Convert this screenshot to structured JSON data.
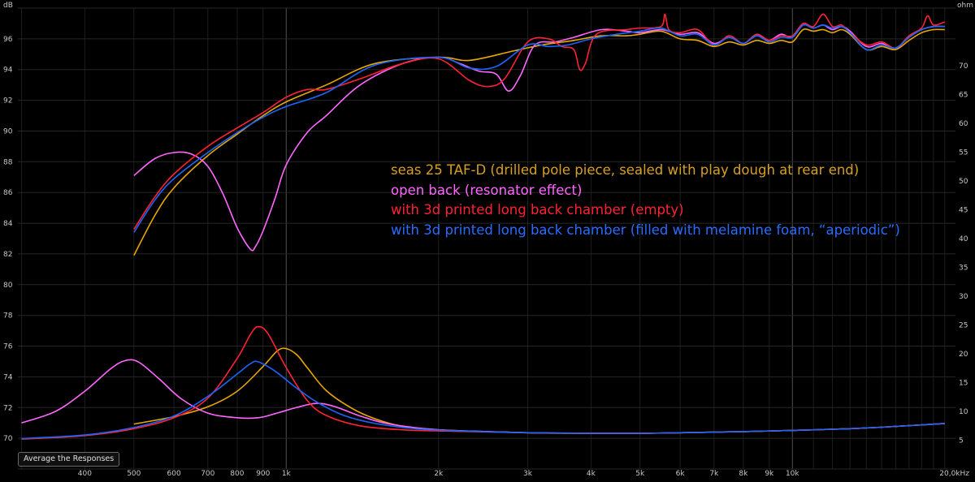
{
  "toolbar": {
    "average_button_label": "Average the Responses"
  },
  "chart_data": {
    "type": "line",
    "title": "",
    "xscale": "log",
    "xlim": [
      295,
      21000
    ],
    "ylabel_left": "dB",
    "ylabel_right": "ohm",
    "ylim_left": [
      68,
      98
    ],
    "ylim_right": [
      0,
      80
    ],
    "y_ticks_left": [
      70,
      72,
      74,
      76,
      78,
      80,
      82,
      84,
      86,
      88,
      90,
      92,
      94,
      96
    ],
    "y_ticks_right": [
      5,
      10,
      15,
      20,
      25,
      30,
      35,
      40,
      45,
      50,
      55,
      60,
      65,
      70
    ],
    "x_ticks": [
      {
        "value": 400,
        "label": "400"
      },
      {
        "value": 500,
        "label": "500"
      },
      {
        "value": 600,
        "label": "600"
      },
      {
        "value": 700,
        "label": "700"
      },
      {
        "value": 800,
        "label": "800"
      },
      {
        "value": 900,
        "label": "900"
      },
      {
        "value": 1000,
        "label": "1k"
      },
      {
        "value": 2000,
        "label": "2k"
      },
      {
        "value": 3000,
        "label": "3k"
      },
      {
        "value": 4000,
        "label": "4k"
      },
      {
        "value": 5000,
        "label": "5k"
      },
      {
        "value": 6000,
        "label": "6k"
      },
      {
        "value": 7000,
        "label": "7k"
      },
      {
        "value": 8000,
        "label": "8k"
      },
      {
        "value": 9000,
        "label": "9k"
      },
      {
        "value": 10000,
        "label": "10k"
      },
      {
        "value": 20000,
        "label": "20,0kHz"
      }
    ],
    "grid": true,
    "legend_position": "center-right",
    "series": [
      {
        "name": "seas 25 TAF-D (drilled pole piece, sealed with play dough at rear end)",
        "color": "#e8a800",
        "spl": [
          [
            500,
            81.9
          ],
          [
            550,
            84.5
          ],
          [
            600,
            86.3
          ],
          [
            700,
            88.4
          ],
          [
            800,
            89.8
          ],
          [
            900,
            91.0
          ],
          [
            1000,
            91.9
          ],
          [
            1200,
            93.0
          ],
          [
            1500,
            94.4
          ],
          [
            2000,
            94.8
          ],
          [
            2300,
            94.6
          ],
          [
            2800,
            95.2
          ],
          [
            3200,
            95.6
          ],
          [
            3700,
            95.9
          ],
          [
            4200,
            96.2
          ],
          [
            4700,
            96.2
          ],
          [
            5000,
            96.3
          ],
          [
            5500,
            96.5
          ],
          [
            6000,
            96.0
          ],
          [
            6500,
            95.9
          ],
          [
            7000,
            95.5
          ],
          [
            7500,
            95.8
          ],
          [
            8000,
            95.6
          ],
          [
            8500,
            95.9
          ],
          [
            9000,
            95.7
          ],
          [
            9500,
            95.9
          ],
          [
            10000,
            95.8
          ],
          [
            10500,
            96.6
          ],
          [
            11000,
            96.5
          ],
          [
            11500,
            96.6
          ],
          [
            12000,
            96.4
          ],
          [
            12500,
            96.6
          ],
          [
            13000,
            96.3
          ],
          [
            14000,
            95.3
          ],
          [
            15000,
            95.5
          ],
          [
            16000,
            95.3
          ],
          [
            17000,
            95.9
          ],
          [
            18000,
            96.4
          ],
          [
            19000,
            96.6
          ],
          [
            20000,
            96.6
          ]
        ],
        "impedance": [
          [
            500,
            7.8
          ],
          [
            600,
            9.1
          ],
          [
            700,
            10.8
          ],
          [
            800,
            13.5
          ],
          [
            900,
            17.8
          ],
          [
            960,
            20.5
          ],
          [
            1000,
            20.9
          ],
          [
            1050,
            19.8
          ],
          [
            1100,
            17.6
          ],
          [
            1200,
            13.6
          ],
          [
            1350,
            10.5
          ],
          [
            1500,
            8.7
          ],
          [
            1700,
            7.4
          ],
          [
            2000,
            6.8
          ],
          [
            3000,
            6.3
          ],
          [
            4000,
            6.2
          ],
          [
            5000,
            6.2
          ],
          [
            6000,
            6.3
          ],
          [
            8000,
            6.5
          ],
          [
            10000,
            6.7
          ],
          [
            13000,
            7.0
          ],
          [
            16000,
            7.4
          ],
          [
            20000,
            7.9
          ]
        ]
      },
      {
        "name": "open back (resonator effect)",
        "color": "#ff66ff",
        "spl": [
          [
            500,
            87.1
          ],
          [
            550,
            88.2
          ],
          [
            600,
            88.6
          ],
          [
            650,
            88.5
          ],
          [
            700,
            87.7
          ],
          [
            750,
            85.9
          ],
          [
            800,
            83.7
          ],
          [
            850,
            82.3
          ],
          [
            870,
            82.5
          ],
          [
            900,
            83.5
          ],
          [
            950,
            85.6
          ],
          [
            1000,
            87.8
          ],
          [
            1100,
            89.9
          ],
          [
            1200,
            91.0
          ],
          [
            1400,
            93.0
          ],
          [
            1700,
            94.4
          ],
          [
            2000,
            94.8
          ],
          [
            2200,
            94.4
          ],
          [
            2400,
            93.9
          ],
          [
            2600,
            93.7
          ],
          [
            2750,
            92.6
          ],
          [
            2900,
            93.6
          ],
          [
            3100,
            95.6
          ],
          [
            3400,
            95.8
          ],
          [
            3700,
            96.1
          ],
          [
            4200,
            96.6
          ],
          [
            4700,
            96.5
          ],
          [
            5000,
            96.4
          ],
          [
            5500,
            96.6
          ],
          [
            6000,
            96.3
          ],
          [
            6500,
            96.4
          ],
          [
            7000,
            95.7
          ],
          [
            7500,
            96.1
          ],
          [
            8000,
            95.7
          ],
          [
            8500,
            96.2
          ],
          [
            9000,
            95.9
          ],
          [
            9500,
            96.3
          ],
          [
            10000,
            96.1
          ],
          [
            10500,
            96.9
          ],
          [
            11000,
            96.7
          ],
          [
            11500,
            96.9
          ],
          [
            12000,
            96.6
          ],
          [
            12500,
            96.8
          ],
          [
            13000,
            96.5
          ],
          [
            14000,
            95.5
          ],
          [
            15000,
            95.7
          ],
          [
            16000,
            95.4
          ],
          [
            17000,
            96.1
          ],
          [
            18000,
            96.6
          ],
          [
            19000,
            96.8
          ],
          [
            20000,
            96.8
          ]
        ],
        "impedance": [
          [
            300,
            8.0
          ],
          [
            350,
            10.0
          ],
          [
            400,
            13.5
          ],
          [
            450,
            17.4
          ],
          [
            480,
            18.8
          ],
          [
            510,
            18.6
          ],
          [
            560,
            15.7
          ],
          [
            620,
            12.2
          ],
          [
            700,
            9.7
          ],
          [
            800,
            8.9
          ],
          [
            880,
            8.9
          ],
          [
            950,
            9.6
          ],
          [
            1050,
            10.7
          ],
          [
            1150,
            11.4
          ],
          [
            1250,
            10.8
          ],
          [
            1400,
            9.2
          ],
          [
            1600,
            7.8
          ],
          [
            2000,
            6.8
          ],
          [
            2500,
            6.5
          ],
          [
            3000,
            6.3
          ],
          [
            4000,
            6.2
          ],
          [
            5000,
            6.2
          ],
          [
            6000,
            6.3
          ],
          [
            8000,
            6.5
          ],
          [
            10000,
            6.7
          ],
          [
            13000,
            7.0
          ],
          [
            16000,
            7.4
          ],
          [
            20000,
            7.9
          ]
        ]
      },
      {
        "name": "with 3d printed long back chamber (empty)",
        "color": "#ff2233",
        "spl": [
          [
            500,
            83.6
          ],
          [
            550,
            85.7
          ],
          [
            600,
            87.2
          ],
          [
            700,
            89.0
          ],
          [
            800,
            90.2
          ],
          [
            900,
            91.2
          ],
          [
            1000,
            92.2
          ],
          [
            1100,
            92.7
          ],
          [
            1200,
            92.7
          ],
          [
            1400,
            93.4
          ],
          [
            1700,
            94.4
          ],
          [
            2000,
            94.7
          ],
          [
            2300,
            93.3
          ],
          [
            2500,
            92.9
          ],
          [
            2700,
            93.4
          ],
          [
            3000,
            95.8
          ],
          [
            3300,
            96.0
          ],
          [
            3500,
            95.5
          ],
          [
            3700,
            95.3
          ],
          [
            3800,
            94.0
          ],
          [
            3900,
            94.4
          ],
          [
            4100,
            96.3
          ],
          [
            4700,
            96.6
          ],
          [
            5000,
            96.7
          ],
          [
            5500,
            96.8
          ],
          [
            5600,
            97.6
          ],
          [
            5700,
            96.6
          ],
          [
            6000,
            96.4
          ],
          [
            6500,
            96.6
          ],
          [
            7000,
            95.6
          ],
          [
            7500,
            96.2
          ],
          [
            8000,
            95.7
          ],
          [
            8500,
            96.3
          ],
          [
            9000,
            95.9
          ],
          [
            9500,
            96.2
          ],
          [
            10000,
            96.2
          ],
          [
            10500,
            97.0
          ],
          [
            11000,
            96.8
          ],
          [
            11500,
            97.6
          ],
          [
            12000,
            96.8
          ],
          [
            12500,
            96.9
          ],
          [
            13000,
            96.4
          ],
          [
            14000,
            95.6
          ],
          [
            15000,
            95.8
          ],
          [
            16000,
            95.4
          ],
          [
            17000,
            96.2
          ],
          [
            18000,
            96.7
          ],
          [
            18500,
            97.5
          ],
          [
            19000,
            96.9
          ],
          [
            20000,
            97.1
          ]
        ],
        "impedance": [
          [
            300,
            5.2
          ],
          [
            400,
            5.8
          ],
          [
            500,
            7.0
          ],
          [
            600,
            8.9
          ],
          [
            700,
            12.3
          ],
          [
            800,
            19.2
          ],
          [
            850,
            23.4
          ],
          [
            880,
            24.7
          ],
          [
            920,
            23.5
          ],
          [
            1000,
            17.6
          ],
          [
            1100,
            11.9
          ],
          [
            1200,
            9.3
          ],
          [
            1400,
            7.5
          ],
          [
            1700,
            6.8
          ],
          [
            2000,
            6.6
          ],
          [
            3000,
            6.3
          ],
          [
            4000,
            6.2
          ],
          [
            5000,
            6.2
          ],
          [
            6000,
            6.3
          ],
          [
            8000,
            6.5
          ],
          [
            10000,
            6.7
          ],
          [
            13000,
            7.0
          ],
          [
            16000,
            7.4
          ],
          [
            20000,
            7.9
          ]
        ]
      },
      {
        "name": "with 3d printed long back chamber (filled with melamine foam, “aperiodic”)",
        "color": "#1a66ff",
        "spl": [
          [
            500,
            83.4
          ],
          [
            550,
            85.5
          ],
          [
            600,
            86.9
          ],
          [
            700,
            88.6
          ],
          [
            800,
            89.9
          ],
          [
            900,
            90.9
          ],
          [
            1000,
            91.6
          ],
          [
            1200,
            92.5
          ],
          [
            1500,
            94.3
          ],
          [
            2000,
            94.8
          ],
          [
            2300,
            94.1
          ],
          [
            2600,
            94.2
          ],
          [
            3000,
            95.6
          ],
          [
            3300,
            95.5
          ],
          [
            3600,
            95.6
          ],
          [
            4000,
            96.0
          ],
          [
            4500,
            96.3
          ],
          [
            5000,
            96.5
          ],
          [
            5500,
            96.7
          ],
          [
            6000,
            96.2
          ],
          [
            6500,
            96.3
          ],
          [
            7000,
            95.6
          ],
          [
            7500,
            96.1
          ],
          [
            8000,
            95.7
          ],
          [
            8500,
            96.2
          ],
          [
            9000,
            95.8
          ],
          [
            9500,
            96.1
          ],
          [
            10000,
            96.1
          ],
          [
            10500,
            96.9
          ],
          [
            11000,
            96.7
          ],
          [
            11500,
            96.9
          ],
          [
            12000,
            96.7
          ],
          [
            12500,
            96.8
          ],
          [
            13000,
            96.4
          ],
          [
            14000,
            95.3
          ],
          [
            15000,
            95.6
          ],
          [
            16000,
            95.4
          ],
          [
            17000,
            96.1
          ],
          [
            18000,
            96.6
          ],
          [
            19000,
            96.8
          ],
          [
            20000,
            96.8
          ]
        ],
        "impedance": [
          [
            300,
            5.3
          ],
          [
            400,
            5.9
          ],
          [
            500,
            7.2
          ],
          [
            600,
            9.2
          ],
          [
            700,
            12.6
          ],
          [
            800,
            16.5
          ],
          [
            850,
            18.3
          ],
          [
            880,
            18.6
          ],
          [
            950,
            17.0
          ],
          [
            1050,
            14.0
          ],
          [
            1150,
            11.6
          ],
          [
            1300,
            9.3
          ],
          [
            1500,
            7.9
          ],
          [
            1800,
            7.0
          ],
          [
            2200,
            6.6
          ],
          [
            3000,
            6.3
          ],
          [
            4000,
            6.2
          ],
          [
            5000,
            6.2
          ],
          [
            6000,
            6.3
          ],
          [
            8000,
            6.5
          ],
          [
            10000,
            6.7
          ],
          [
            13000,
            7.0
          ],
          [
            16000,
            7.4
          ],
          [
            20000,
            7.9
          ]
        ]
      }
    ]
  }
}
